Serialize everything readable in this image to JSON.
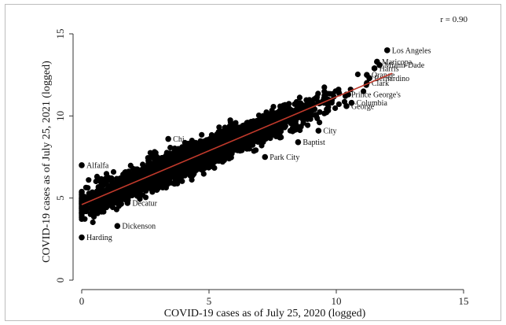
{
  "chart_data": {
    "type": "scatter",
    "title": "",
    "xlabel": "COVID-19 cases as of July 25, 2020 (logged)",
    "ylabel": "COVID-19 cases as of July 25, 2021 (logged)",
    "xlim": [
      0,
      15
    ],
    "ylim": [
      0,
      15
    ],
    "xticks": [
      "0",
      "5",
      "10",
      "15"
    ],
    "yticks": [
      "0",
      "5",
      "10",
      "15"
    ],
    "annotation": "r = 0.90",
    "grid": false,
    "marker_color": "#000000",
    "fit_line": {
      "color": "#c0392b",
      "x": [
        0,
        12.2
      ],
      "y": [
        4.6,
        12.6
      ]
    },
    "labeled_points": [
      {
        "label": "Los Angeles",
        "x": 12.0,
        "y": 14.0
      },
      {
        "label": "Maricopa",
        "x": 11.6,
        "y": 13.3
      },
      {
        "label": "Miami-Dade",
        "x": 11.7,
        "y": 13.1
      },
      {
        "label": "Harris",
        "x": 11.5,
        "y": 12.9
      },
      {
        "label": "Orange",
        "x": 11.2,
        "y": 12.5
      },
      {
        "label": "Bernardino",
        "x": 11.3,
        "y": 12.3
      },
      {
        "label": "Clark",
        "x": 11.2,
        "y": 12.0
      },
      {
        "label": "Prince George's",
        "x": 10.4,
        "y": 11.3
      },
      {
        "label": "Columbia",
        "x": 10.6,
        "y": 10.8
      },
      {
        "label": "George",
        "x": 10.4,
        "y": 10.6
      },
      {
        "label": "City",
        "x": 9.3,
        "y": 9.1
      },
      {
        "label": "Baptist",
        "x": 8.5,
        "y": 8.4
      },
      {
        "label": "Park City",
        "x": 7.2,
        "y": 7.5
      },
      {
        "label": "Chi",
        "x": 3.4,
        "y": 8.6
      },
      {
        "label": "Alfalfa",
        "x": 0.0,
        "y": 7.0
      },
      {
        "label": "Decatur",
        "x": 1.8,
        "y": 4.7
      },
      {
        "label": "Dickenson",
        "x": 1.4,
        "y": 3.3
      },
      {
        "label": "Harding",
        "x": 0.0,
        "y": 2.6
      }
    ]
  }
}
